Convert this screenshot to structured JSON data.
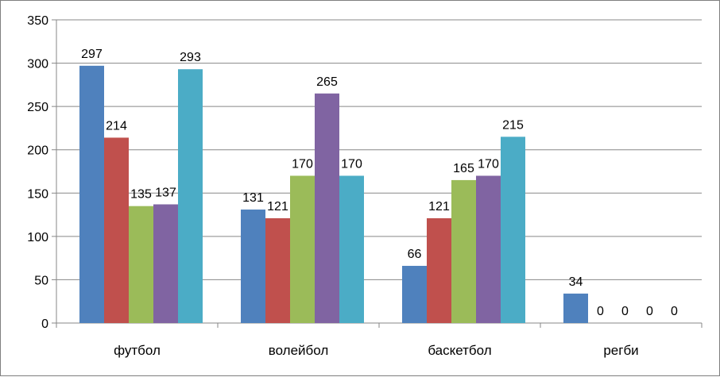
{
  "chart_data": {
    "type": "bar",
    "categories": [
      "футбол",
      "волейбол",
      "баскетбол",
      "регби"
    ],
    "series": [
      {
        "values": [
          297,
          131,
          66,
          34
        ],
        "color": "#4f81bd"
      },
      {
        "values": [
          214,
          121,
          121,
          0
        ],
        "color": "#c0504d"
      },
      {
        "values": [
          135,
          170,
          165,
          0
        ],
        "color": "#9bbb59"
      },
      {
        "values": [
          137,
          265,
          170,
          0
        ],
        "color": "#8064a2"
      },
      {
        "values": [
          293,
          170,
          215,
          0
        ],
        "color": "#4bacc6"
      }
    ],
    "ylim": [
      0,
      350
    ],
    "yticks": [
      0,
      50,
      100,
      150,
      200,
      250,
      300,
      350
    ],
    "grid": true,
    "legend": "none",
    "data_labels": true
  }
}
